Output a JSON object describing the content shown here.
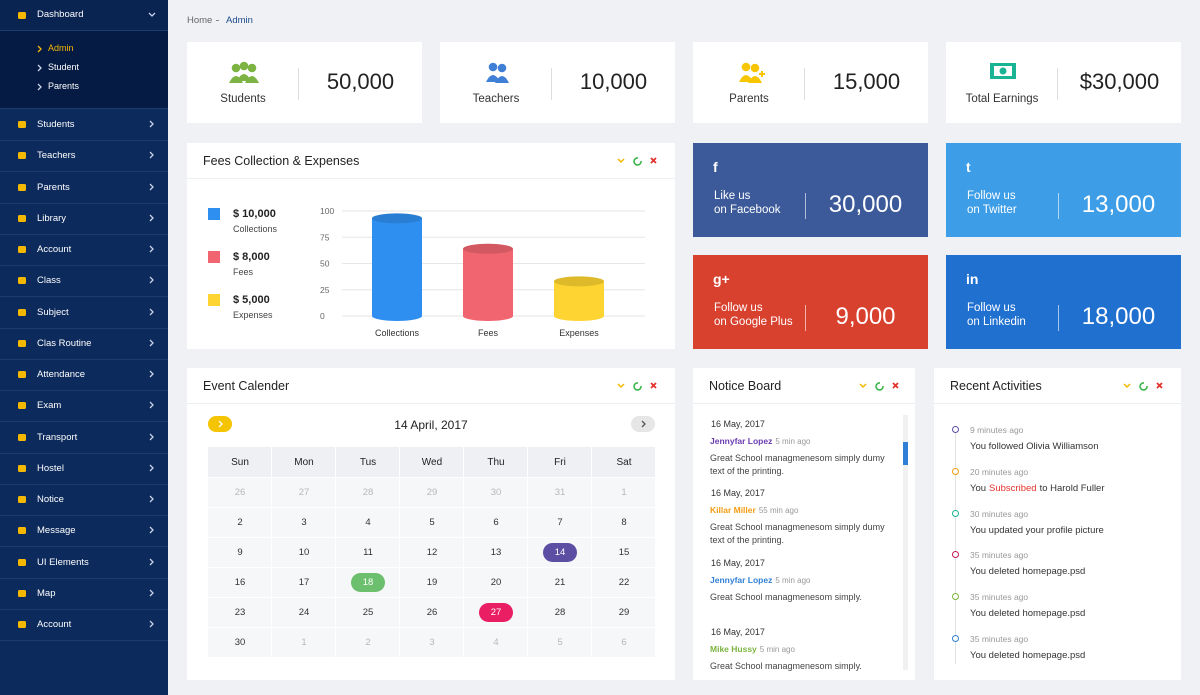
{
  "sidebar": {
    "items": [
      {
        "label": "Dashboard",
        "children": [
          "Admin",
          "Student",
          "Parents"
        ]
      },
      {
        "label": "Students"
      },
      {
        "label": "Teachers"
      },
      {
        "label": "Parents"
      },
      {
        "label": "Library"
      },
      {
        "label": "Account"
      },
      {
        "label": "Class"
      },
      {
        "label": "Subject"
      },
      {
        "label": "Clas Routine"
      },
      {
        "label": "Attendance"
      },
      {
        "label": "Exam"
      },
      {
        "label": "Transport"
      },
      {
        "label": "Hostel"
      },
      {
        "label": "Notice"
      },
      {
        "label": "Message"
      },
      {
        "label": "UI Elements"
      },
      {
        "label": "Map"
      },
      {
        "label": "Account"
      }
    ]
  },
  "breadcrumb": [
    "Home",
    "Admin"
  ],
  "stats": [
    {
      "label": "Students",
      "value": "50,000",
      "color": "#7cb342"
    },
    {
      "label": "Teachers",
      "value": "10,000",
      "color": "#3f7fd6"
    },
    {
      "label": "Parents",
      "value": "15,000",
      "color": "#f7c600"
    },
    {
      "label": "Total Earnings",
      "value": "$30,000",
      "color": "#1ab394"
    }
  ],
  "fees": {
    "title": "Fees Collection & Expenses",
    "legend": [
      {
        "amount": "$ 10,000",
        "label": "Collections"
      },
      {
        "amount": "$ 8,000",
        "label": "Fees"
      },
      {
        "amount": "$ 5,000",
        "label": "Expenses"
      }
    ]
  },
  "chart_data": {
    "type": "bar",
    "categories": [
      "Collections",
      "Fees",
      "Expenses"
    ],
    "values": [
      93,
      64,
      33
    ],
    "colors": [
      "#2f8ff0",
      "#f0656f",
      "#fdd432"
    ],
    "ylim": [
      0,
      100
    ],
    "yticks": [
      0,
      25,
      50,
      75,
      100
    ],
    "grid": true
  },
  "social": [
    {
      "icon": "f",
      "line1": "Like us",
      "line2": "on Facebook",
      "value": "30,000",
      "color": "#3c5a99"
    },
    {
      "icon": "t",
      "line1": "Follow us",
      "line2": "on Twitter",
      "value": "13,000",
      "color": "#3d9de6"
    },
    {
      "icon": "g+",
      "line1": "Follow us",
      "line2": "on Google Plus",
      "value": "9,000",
      "color": "#d9412f"
    },
    {
      "icon": "in",
      "line1": "Follow us",
      "line2": "on Linkedin",
      "value": "18,000",
      "color": "#2070d0"
    }
  ],
  "calendar": {
    "title": "Event Calender",
    "month": "14 April, 2017",
    "days": [
      "Sun",
      "Mon",
      "Tus",
      "Wed",
      "Thu",
      "Fri",
      "Sat"
    ],
    "weeks": [
      [
        {
          "day": "26",
          "muted": true
        },
        {
          "day": "27",
          "muted": true
        },
        {
          "day": "28",
          "muted": true
        },
        {
          "day": "29",
          "muted": true
        },
        {
          "day": "30",
          "muted": true
        },
        {
          "day": "31",
          "muted": true
        },
        {
          "day": "1",
          "muted": true
        }
      ],
      [
        {
          "day": "2"
        },
        {
          "day": "3"
        },
        {
          "day": "4"
        },
        {
          "day": "5"
        },
        {
          "day": "6"
        },
        {
          "day": "7"
        },
        {
          "day": "8"
        }
      ],
      [
        {
          "day": "9"
        },
        {
          "day": "10"
        },
        {
          "day": "11"
        },
        {
          "day": "12"
        },
        {
          "day": "13"
        },
        {
          "day": "14",
          "color": "#5c4fa3"
        },
        {
          "day": "15"
        }
      ],
      [
        {
          "day": "16"
        },
        {
          "day": "17"
        },
        {
          "day": "18",
          "color": "#6cbf6c"
        },
        {
          "day": "19"
        },
        {
          "day": "20"
        },
        {
          "day": "21"
        },
        {
          "day": "22"
        }
      ],
      [
        {
          "day": "23"
        },
        {
          "day": "24"
        },
        {
          "day": "25"
        },
        {
          "day": "26"
        },
        {
          "day": "27",
          "color": "#e91e63"
        },
        {
          "day": "28"
        },
        {
          "day": "29"
        }
      ],
      [
        {
          "day": "30"
        },
        {
          "day": "1",
          "muted": true
        },
        {
          "day": "2",
          "muted": true
        },
        {
          "day": "3",
          "muted": true
        },
        {
          "day": "4",
          "muted": true
        },
        {
          "day": "5",
          "muted": true
        },
        {
          "day": "6",
          "muted": true
        }
      ]
    ]
  },
  "notice": {
    "title": "Notice Board",
    "items": [
      {
        "date": "16 May, 2017",
        "author": "Jennyfar Lopez",
        "color": "#6a3bb0",
        "ago": "5 min ago",
        "text": "Great School managmenesom simply dumy text of the printing."
      },
      {
        "date": "16 May, 2017",
        "author": "Killar Miller",
        "color": "#f39c12",
        "ago": "55 min ago",
        "text": "Great School managmenesom simply dumy text of the printing."
      },
      {
        "date": "16 May, 2017",
        "author": "Jennyfar Lopez",
        "color": "#2f7fd6",
        "ago": "5 min ago",
        "text": "Great School managmenesom simply."
      },
      {
        "date": "16 May, 2017",
        "author": "Mike Hussy",
        "color": "#7cb342",
        "ago": "5 min ago",
        "text": "Great School managmenesom simply."
      }
    ]
  },
  "activity": {
    "title": "Recent Activities",
    "items": [
      {
        "time": "9 minutes ago",
        "color": "#5e4fa2",
        "text": [
          {
            "t": "You followed Olivia Williamson"
          }
        ]
      },
      {
        "time": "20 minutes ago",
        "color": "#f39c12",
        "text": [
          {
            "t": "You"
          },
          {
            "t": "Subscribed",
            "color": "#e5322d"
          },
          {
            "t": "to Harold Fuller"
          }
        ]
      },
      {
        "time": "30 minutes ago",
        "color": "#1ab394",
        "text": [
          {
            "t": "You updated your profile picture"
          }
        ]
      },
      {
        "time": "35 minutes ago",
        "color": "#c2185b",
        "text": [
          {
            "t": "You deleted homepage.psd"
          }
        ]
      },
      {
        "time": "35 minutes ago",
        "color": "#7cb342",
        "text": [
          {
            "t": "You deleted homepage.psd"
          }
        ]
      },
      {
        "time": "35 minutes ago",
        "color": "#2f7fd6",
        "text": [
          {
            "t": "You deleted homepage.psd"
          }
        ]
      }
    ]
  }
}
